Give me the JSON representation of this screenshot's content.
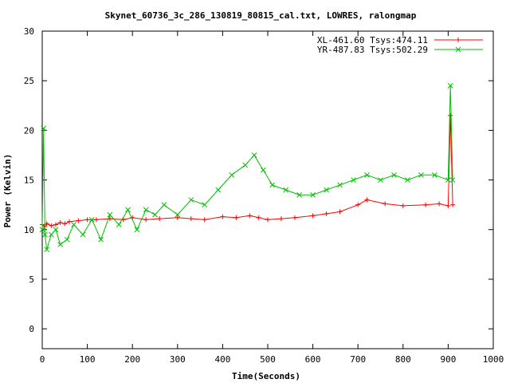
{
  "chart_data": {
    "type": "line",
    "title": "Skynet_60736_3c_286_130819_80815_cal.txt, LOWRES, ralongmap",
    "xlabel": "Time(Seconds)",
    "ylabel": "Power (Kelvin)",
    "xlim": [
      0,
      1000
    ],
    "ylim": [
      -2,
      30
    ],
    "xticks": [
      0,
      100,
      200,
      300,
      400,
      500,
      600,
      700,
      800,
      900,
      1000
    ],
    "yticks": [
      0,
      5,
      10,
      15,
      20,
      25,
      30
    ],
    "grid": false,
    "legend_position": "top-right",
    "series": [
      {
        "name": "XL-461.60 Tsys:474.11",
        "color": "#ff0000",
        "marker": "plus",
        "x": [
          0,
          5,
          10,
          20,
          30,
          40,
          50,
          60,
          80,
          100,
          120,
          150,
          180,
          200,
          230,
          260,
          300,
          330,
          360,
          400,
          430,
          460,
          480,
          500,
          530,
          560,
          600,
          630,
          660,
          700,
          720,
          760,
          800,
          850,
          880,
          900,
          905,
          910
        ],
        "y": [
          10.5,
          10.3,
          10.6,
          10.4,
          10.5,
          10.7,
          10.6,
          10.8,
          10.9,
          11.0,
          11.0,
          11.1,
          11.0,
          11.2,
          11.0,
          11.1,
          11.2,
          11.1,
          11.0,
          11.3,
          11.2,
          11.4,
          11.2,
          11.0,
          11.1,
          11.2,
          11.4,
          11.6,
          11.8,
          12.5,
          13.0,
          12.6,
          12.4,
          12.5,
          12.6,
          12.4,
          21.5,
          12.5
        ]
      },
      {
        "name": "YR-487.83 Tsys:502.29",
        "color": "#00c000",
        "marker": "cross",
        "x": [
          0,
          3,
          6,
          10,
          20,
          30,
          40,
          55,
          70,
          90,
          110,
          130,
          150,
          170,
          190,
          210,
          230,
          250,
          270,
          300,
          330,
          360,
          390,
          420,
          450,
          470,
          490,
          510,
          540,
          570,
          600,
          630,
          660,
          690,
          720,
          750,
          780,
          810,
          840,
          870,
          900,
          905,
          910
        ],
        "y": [
          10.0,
          20.2,
          9.5,
          8.0,
          9.5,
          10.0,
          8.5,
          9.0,
          10.5,
          9.5,
          11.0,
          9.0,
          11.5,
          10.5,
          12.0,
          10.0,
          12.0,
          11.5,
          12.5,
          11.5,
          13.0,
          12.5,
          14.0,
          15.5,
          16.5,
          17.5,
          16.0,
          14.5,
          14.0,
          13.5,
          13.5,
          14.0,
          14.5,
          15.0,
          15.5,
          15.0,
          15.5,
          15.0,
          15.5,
          15.5,
          15.0,
          24.5,
          15.0
        ]
      }
    ]
  }
}
